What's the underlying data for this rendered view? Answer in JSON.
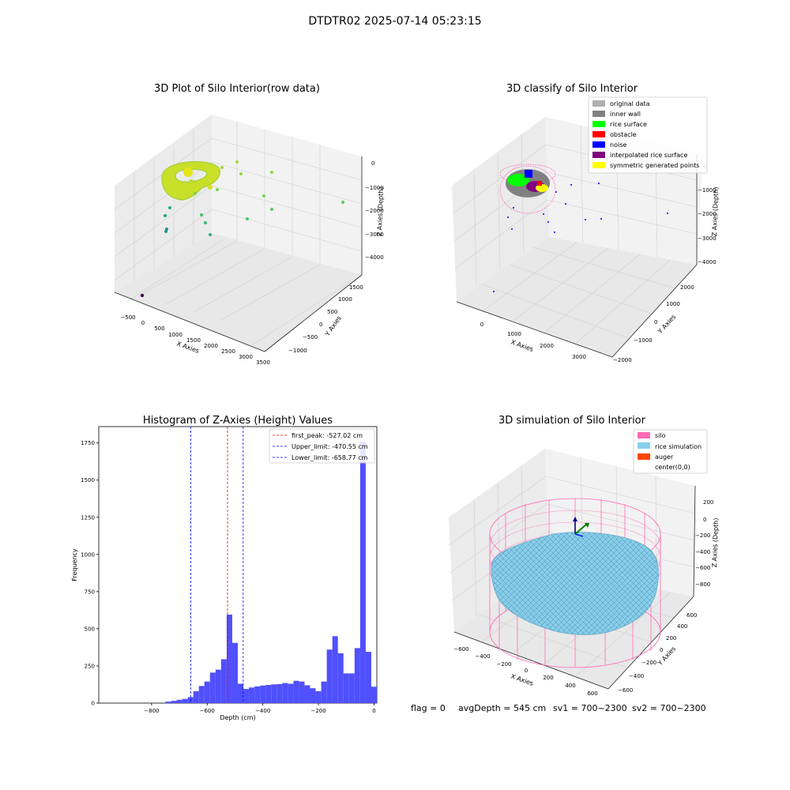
{
  "figure": {
    "suptitle": "DTDTR02 2025-07-14 05:23:15",
    "status_line": {
      "flag": "flag = 0",
      "avg": "avgDepth = 545 cm",
      "sv1": "sv1 = 700~2300",
      "sv2": "sv2 = 700~2300"
    }
  },
  "chart_data": [
    {
      "type": "scatter",
      "projection": "3d",
      "title": "3D Plot of Silo Interior(row data)",
      "xlabel": "X Axies",
      "ylabel": "Y Axies",
      "zlabel": "Z Axies (Depth)",
      "x_ticks": [
        "−500",
        "0",
        "500",
        "1000",
        "1500",
        "2000",
        "2500",
        "3000",
        "3500"
      ],
      "y_ticks": [
        "−1000",
        "−500",
        "0",
        "500",
        "1000",
        "1500"
      ],
      "z_ticks": [
        "0",
        "−1000",
        "−2000",
        "−3000",
        "−4000"
      ],
      "colormap": "viridis",
      "colors": {
        "bright": "#d2e21b",
        "mid": "#5ec962",
        "teal": "#21918c",
        "dark": "#440154"
      }
    },
    {
      "type": "scatter",
      "projection": "3d",
      "title": "3D classify of Silo Interior",
      "xlabel": "X Axies",
      "ylabel": "Y Axies",
      "zlabel": "Z Axies (Depth)",
      "x_ticks": [
        "0",
        "1000",
        "2000",
        "3000"
      ],
      "y_ticks": [
        "−2000",
        "−1000",
        "0",
        "1000",
        "2000"
      ],
      "z_ticks": [
        "0",
        "−1000",
        "−2000",
        "−3000",
        "−4000"
      ],
      "legend": {
        "position": "top-right",
        "entries": [
          {
            "label": "original data",
            "color": "#b0b0b0"
          },
          {
            "label": "inner wall",
            "color": "#808080"
          },
          {
            "label": "rice surface",
            "color": "#00ff00"
          },
          {
            "label": "obstacle",
            "color": "#ff0000"
          },
          {
            "label": "noise",
            "color": "#0000ff"
          },
          {
            "label": "interpolated rice surface",
            "color": "#800080"
          },
          {
            "label": "symmetric generated points",
            "color": "#ffff00"
          }
        ]
      }
    },
    {
      "type": "bar",
      "title": "Histogram of Z-Axies (Height) Values",
      "xlabel": "Depth (cm)",
      "ylabel": "Frequency",
      "xlim": [
        -990,
        10
      ],
      "ylim": [
        0,
        1860
      ],
      "x_ticks": [
        -800,
        -600,
        -400,
        -200,
        0
      ],
      "y_ticks": [
        0,
        250,
        500,
        750,
        1000,
        1250,
        1500,
        1750
      ],
      "bin_width": 20,
      "bar_color": "#5050ff",
      "bins": [
        {
          "x": -740,
          "v": 10
        },
        {
          "x": -720,
          "v": 15
        },
        {
          "x": -700,
          "v": 22
        },
        {
          "x": -680,
          "v": 28
        },
        {
          "x": -660,
          "v": 40
        },
        {
          "x": -640,
          "v": 80
        },
        {
          "x": -620,
          "v": 115
        },
        {
          "x": -600,
          "v": 145
        },
        {
          "x": -580,
          "v": 205
        },
        {
          "x": -560,
          "v": 225
        },
        {
          "x": -540,
          "v": 295
        },
        {
          "x": -520,
          "v": 595
        },
        {
          "x": -500,
          "v": 405
        },
        {
          "x": -480,
          "v": 130
        },
        {
          "x": -460,
          "v": 95
        },
        {
          "x": -440,
          "v": 105
        },
        {
          "x": -420,
          "v": 112
        },
        {
          "x": -400,
          "v": 118
        },
        {
          "x": -380,
          "v": 122
        },
        {
          "x": -360,
          "v": 126
        },
        {
          "x": -340,
          "v": 128
        },
        {
          "x": -320,
          "v": 135
        },
        {
          "x": -300,
          "v": 130
        },
        {
          "x": -280,
          "v": 150
        },
        {
          "x": -260,
          "v": 145
        },
        {
          "x": -240,
          "v": 120
        },
        {
          "x": -220,
          "v": 100
        },
        {
          "x": -200,
          "v": 80
        },
        {
          "x": -180,
          "v": 145
        },
        {
          "x": -160,
          "v": 360
        },
        {
          "x": -140,
          "v": 450
        },
        {
          "x": -120,
          "v": 335
        },
        {
          "x": -100,
          "v": 200
        },
        {
          "x": -80,
          "v": 200
        },
        {
          "x": -60,
          "v": 370
        },
        {
          "x": -40,
          "v": 1760
        },
        {
          "x": -20,
          "v": 345
        },
        {
          "x": 0,
          "v": 110
        }
      ],
      "lines": [
        {
          "label": "first_peak: -527.02 cm",
          "x": -527.02,
          "color": "#ff0000"
        },
        {
          "label": "Upper_limit: -470.55 cm",
          "x": -470.55,
          "color": "#0000ff"
        },
        {
          "label": "Lower_limit: -658.77 cm",
          "x": -658.77,
          "color": "#0000ff"
        }
      ],
      "legend_position": "top-right"
    },
    {
      "type": "surface",
      "projection": "3d",
      "title": "3D simulation of Silo Interior",
      "xlabel": "X Axies",
      "ylabel": "Y Axies",
      "zlabel": "Z Axies (Depth)",
      "x_ticks": [
        "−600",
        "−400",
        "−200",
        "0",
        "200",
        "400",
        "600"
      ],
      "y_ticks": [
        "−600",
        "−400",
        "−200",
        "0",
        "200",
        "400",
        "600"
      ],
      "z_ticks": [
        "200",
        "0",
        "−200",
        "−400",
        "−600",
        "−800"
      ],
      "legend": {
        "position": "top-right",
        "entries": [
          {
            "label": "silo",
            "color": "#ff69b4"
          },
          {
            "label": "rice simulation",
            "color": "#87ceeb"
          },
          {
            "label": "auger",
            "color": "#ff4500"
          },
          {
            "label": "center(0,0)",
            "color": ""
          }
        ]
      }
    }
  ]
}
